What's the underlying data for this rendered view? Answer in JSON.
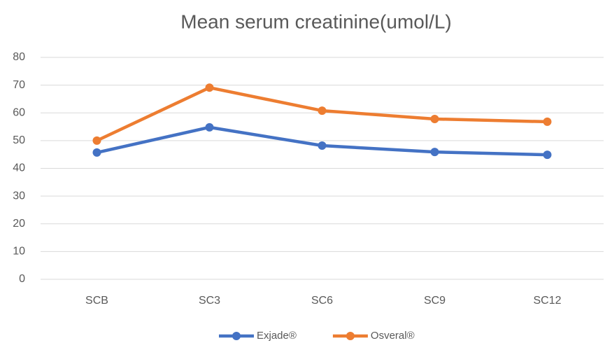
{
  "chart_data": {
    "type": "line",
    "title": "Mean serum creatinine(umol/L)",
    "categories": [
      "SCB",
      "SC3",
      "SC6",
      "SC9",
      "SC12"
    ],
    "series": [
      {
        "name": "Exjade®",
        "color": "#4472c4",
        "values": [
          45.7,
          54.8,
          48.2,
          45.9,
          44.9
        ]
      },
      {
        "name": "Osveral®",
        "color": "#ed7d31",
        "values": [
          50,
          69.1,
          60.8,
          57.8,
          56.8
        ]
      }
    ],
    "ylim": [
      0,
      80
    ],
    "yticks": [
      0,
      10,
      20,
      30,
      40,
      50,
      60,
      70,
      80
    ],
    "grid": true,
    "legend": "bottom"
  }
}
